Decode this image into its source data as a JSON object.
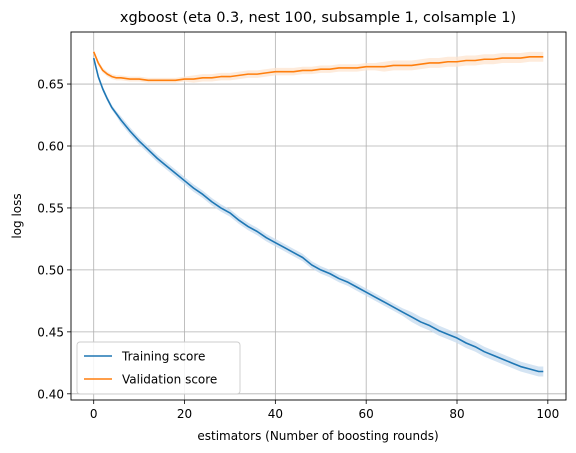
{
  "chart_data": {
    "type": "line",
    "title": "xgboost (eta 0.3, nest 100, subsample 1, colsample 1)",
    "xlabel": "estimators (Number of boosting rounds)",
    "ylabel": "log loss",
    "xlim": [
      -5,
      104
    ],
    "ylim": [
      0.395,
      0.692
    ],
    "xticks": [
      0,
      20,
      40,
      60,
      80,
      100
    ],
    "yticks": [
      0.4,
      0.45,
      0.5,
      0.55,
      0.6,
      0.65
    ],
    "xtick_labels": [
      "0",
      "20",
      "40",
      "60",
      "80",
      "100"
    ],
    "ytick_labels": [
      "0.40",
      "0.45",
      "0.50",
      "0.55",
      "0.60",
      "0.65"
    ],
    "grid": true,
    "legend_position": "lower-left",
    "series": [
      {
        "name": "Training score",
        "color": "#1f77b4",
        "band_color": "#c6dbef",
        "x": [
          0,
          1,
          2,
          3,
          4,
          5,
          6,
          8,
          10,
          12,
          14,
          16,
          18,
          20,
          22,
          24,
          26,
          28,
          30,
          32,
          34,
          36,
          38,
          40,
          42,
          44,
          46,
          48,
          50,
          52,
          54,
          56,
          58,
          60,
          62,
          64,
          66,
          68,
          70,
          72,
          74,
          76,
          78,
          80,
          82,
          84,
          86,
          88,
          90,
          92,
          94,
          96,
          98,
          99
        ],
        "values": [
          0.671,
          0.656,
          0.646,
          0.638,
          0.631,
          0.626,
          0.621,
          0.612,
          0.604,
          0.597,
          0.59,
          0.584,
          0.578,
          0.572,
          0.566,
          0.561,
          0.555,
          0.55,
          0.546,
          0.54,
          0.535,
          0.531,
          0.526,
          0.522,
          0.518,
          0.514,
          0.51,
          0.504,
          0.5,
          0.497,
          0.493,
          0.49,
          0.486,
          0.482,
          0.478,
          0.474,
          0.47,
          0.466,
          0.462,
          0.458,
          0.455,
          0.451,
          0.448,
          0.445,
          0.441,
          0.438,
          0.434,
          0.431,
          0.428,
          0.425,
          0.422,
          0.42,
          0.418,
          0.418
        ],
        "band": [
          0.001,
          0.002,
          0.002,
          0.002,
          0.002,
          0.002,
          0.003,
          0.003,
          0.003,
          0.003,
          0.003,
          0.003,
          0.003,
          0.003,
          0.003,
          0.003,
          0.003,
          0.003,
          0.003,
          0.003,
          0.003,
          0.003,
          0.003,
          0.003,
          0.003,
          0.003,
          0.003,
          0.003,
          0.003,
          0.003,
          0.003,
          0.003,
          0.003,
          0.003,
          0.003,
          0.003,
          0.003,
          0.003,
          0.004,
          0.004,
          0.004,
          0.004,
          0.004,
          0.004,
          0.004,
          0.004,
          0.004,
          0.004,
          0.004,
          0.004,
          0.004,
          0.004,
          0.004,
          0.004
        ]
      },
      {
        "name": "Validation score",
        "color": "#ff7f0e",
        "band_color": "#fde4cf",
        "x": [
          0,
          1,
          2,
          3,
          4,
          5,
          6,
          8,
          10,
          12,
          14,
          16,
          18,
          20,
          22,
          24,
          26,
          28,
          30,
          32,
          34,
          36,
          38,
          40,
          42,
          44,
          46,
          48,
          50,
          52,
          54,
          56,
          58,
          60,
          62,
          64,
          66,
          68,
          70,
          72,
          74,
          76,
          78,
          80,
          82,
          84,
          86,
          88,
          90,
          92,
          94,
          96,
          98,
          99
        ],
        "values": [
          0.676,
          0.667,
          0.661,
          0.658,
          0.656,
          0.655,
          0.655,
          0.654,
          0.654,
          0.653,
          0.653,
          0.653,
          0.653,
          0.654,
          0.654,
          0.655,
          0.655,
          0.656,
          0.656,
          0.657,
          0.658,
          0.658,
          0.659,
          0.66,
          0.66,
          0.66,
          0.661,
          0.661,
          0.662,
          0.662,
          0.663,
          0.663,
          0.663,
          0.664,
          0.664,
          0.664,
          0.665,
          0.665,
          0.665,
          0.666,
          0.667,
          0.667,
          0.668,
          0.668,
          0.669,
          0.669,
          0.67,
          0.67,
          0.671,
          0.671,
          0.671,
          0.672,
          0.672,
          0.672
        ],
        "band": [
          0.002,
          0.002,
          0.002,
          0.002,
          0.002,
          0.002,
          0.002,
          0.002,
          0.002,
          0.002,
          0.002,
          0.002,
          0.002,
          0.002,
          0.003,
          0.003,
          0.003,
          0.003,
          0.003,
          0.003,
          0.003,
          0.003,
          0.003,
          0.003,
          0.003,
          0.003,
          0.003,
          0.003,
          0.003,
          0.003,
          0.003,
          0.003,
          0.003,
          0.003,
          0.003,
          0.004,
          0.004,
          0.004,
          0.004,
          0.004,
          0.004,
          0.004,
          0.004,
          0.004,
          0.004,
          0.004,
          0.004,
          0.004,
          0.004,
          0.004,
          0.004,
          0.004,
          0.004,
          0.004
        ]
      }
    ]
  }
}
